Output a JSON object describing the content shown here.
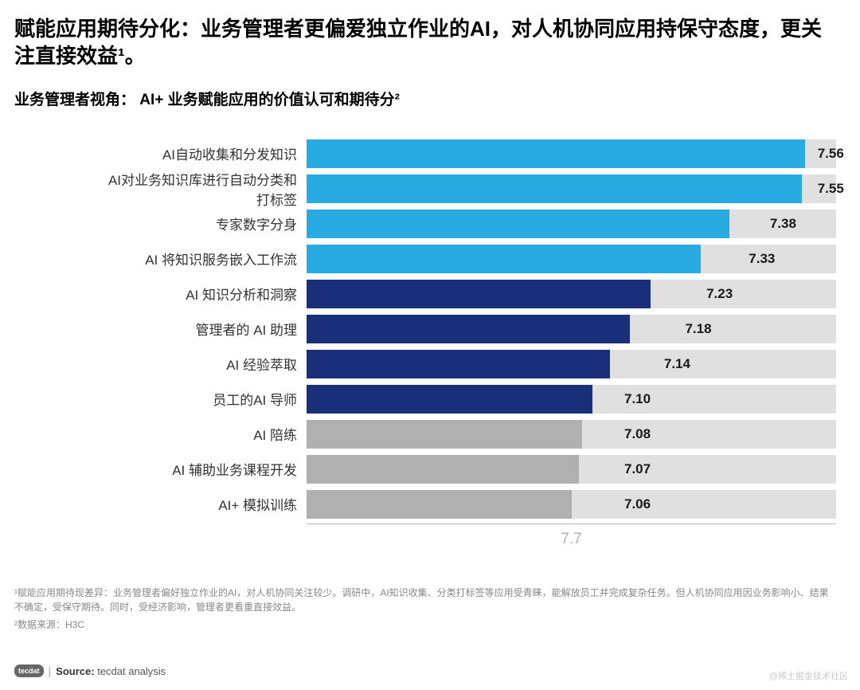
{
  "title": "赋能应用期待分化：业务管理者更偏爱独立作业的AI，对人机协同应用持保守态度，更关注直接效益¹。",
  "subtitle": "业务管理者视角：  AI+ 业务赋能应用的价值认可和期待分²",
  "chart": {
    "type": "bar",
    "track_color": "#e0e0e0",
    "colors": {
      "light_blue": "#29abe2",
      "dark_blue": "#1a2f7a",
      "gray": "#b0b0b0"
    },
    "value_min": 6.5,
    "value_max": 7.7,
    "axis_value": "7.7",
    "bars": [
      {
        "label": "AI自动收集和分发知识",
        "value": "7.56",
        "width_pct": 94.2,
        "color": "#29abe2",
        "value_offset_pct": 96.5
      },
      {
        "label": "AI对业务知识库进行自动分类和打标签",
        "value": "7.55",
        "width_pct": 93.5,
        "color": "#29abe2",
        "value_offset_pct": 96.5
      },
      {
        "label": "专家数字分身",
        "value": "7.38",
        "width_pct": 79.8,
        "color": "#29abe2",
        "value_offset_pct": 87.5
      },
      {
        "label": "AI 将知识服务嵌入工作流",
        "value": "7.33",
        "width_pct": 74.5,
        "color": "#29abe2",
        "value_offset_pct": 83.5
      },
      {
        "label": "AI 知识分析和洞察",
        "value": "7.23",
        "width_pct": 65.0,
        "color": "#1a2f7a",
        "value_offset_pct": 75.5
      },
      {
        "label": "管理者的 AI 助理",
        "value": "7.18",
        "width_pct": 61.0,
        "color": "#1a2f7a",
        "value_offset_pct": 71.5
      },
      {
        "label": "AI 经验萃取",
        "value": "7.14",
        "width_pct": 57.3,
        "color": "#1a2f7a",
        "value_offset_pct": 67.5
      },
      {
        "label": "员工的AI 导师",
        "value": "7.10",
        "width_pct": 54.0,
        "color": "#1a2f7a",
        "value_offset_pct": 60.0
      },
      {
        "label": "AI 陪练",
        "value": "7.08",
        "width_pct": 52.0,
        "color": "#b0b0b0",
        "value_offset_pct": 60.0
      },
      {
        "label": "AI 辅助业务课程开发",
        "value": "7.07",
        "width_pct": 51.5,
        "color": "#b0b0b0",
        "value_offset_pct": 60.0
      },
      {
        "label": "AI+ 模拟训练",
        "value": "7.06",
        "width_pct": 50.0,
        "color": "#b0b0b0",
        "value_offset_pct": 60.0
      }
    ]
  },
  "footnote1": "¹赋能应用期待现差异：业务管理者偏好独立作业的AI，对人机协同关注较少。调研中，AI知识收集、分类打标签等应用受青睐，能解放员工并完成复杂任务。但人机协同应用因业务影响小、结果不确定，受保守期待。同时，受经济影响，管理者更看重直接效益。",
  "footnote2": "²数据来源：H3C",
  "footer": {
    "badge": "tecdat",
    "source_label": "Source:",
    "source_text": "tecdat analysis"
  },
  "watermark": "@稀土掘金技术社区"
}
